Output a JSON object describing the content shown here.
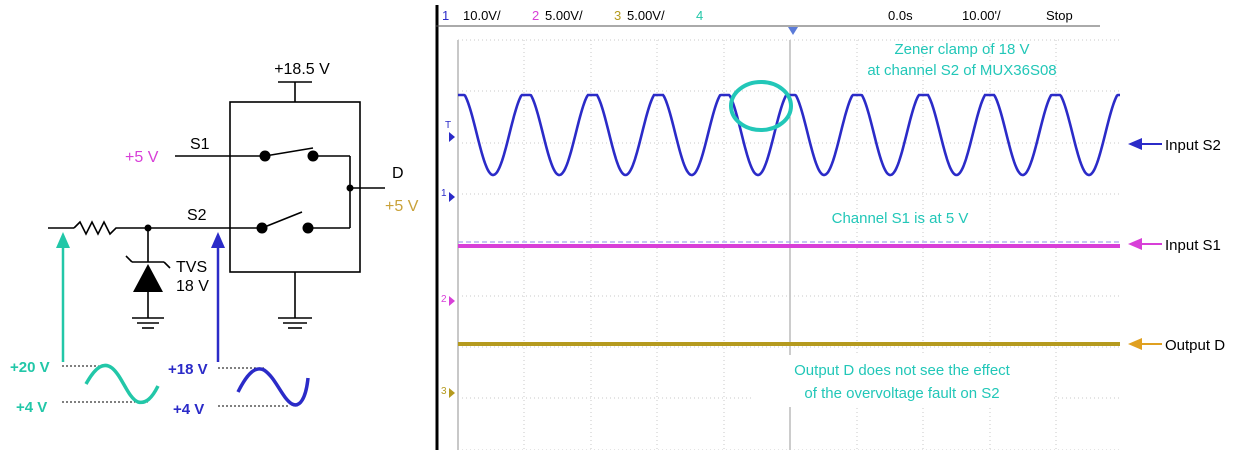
{
  "circuit": {
    "supply": "+18.5 V",
    "s1": "S1",
    "s2": "S2",
    "d": "D",
    "s1_input": "+5 V",
    "d_output": "+5 V",
    "tvs": "TVS",
    "tvs_voltage": "18 V",
    "src_high": "+20 V",
    "src_low": "+4 V",
    "s2_high": "+18 V",
    "s2_low": "+4 V"
  },
  "scope": {
    "header": {
      "ch1_num": "1",
      "ch1": "10.0V/",
      "ch2_num": "2",
      "ch2": "5.00V/",
      "ch3_num": "3",
      "ch3": "5.00V/",
      "ch4_num": "4",
      "time_offset": "0.0s",
      "time_div": "10.00'/",
      "status": "Stop"
    },
    "markers": {
      "trig": "T",
      "ch1": "1",
      "ch2": "2",
      "ch3": "3"
    },
    "annotations": {
      "zener_line1": "Zener clamp of 18 V",
      "zener_line2": "at channel S2 of MUX36S08",
      "s1_note": "Channel S1 is at 5 V",
      "d_note_line1": "Output D does not see the effect",
      "d_note_line2": "of the overvoltage fault on S2"
    },
    "labels": {
      "input_s2": "Input S2",
      "input_s1": "Input S1",
      "output_d": "Output D"
    },
    "colors": {
      "ch1": "#2b2bc8",
      "ch2": "#d83fd8",
      "ch3": "#b59a1e",
      "annotation": "#22c7b8"
    }
  }
}
